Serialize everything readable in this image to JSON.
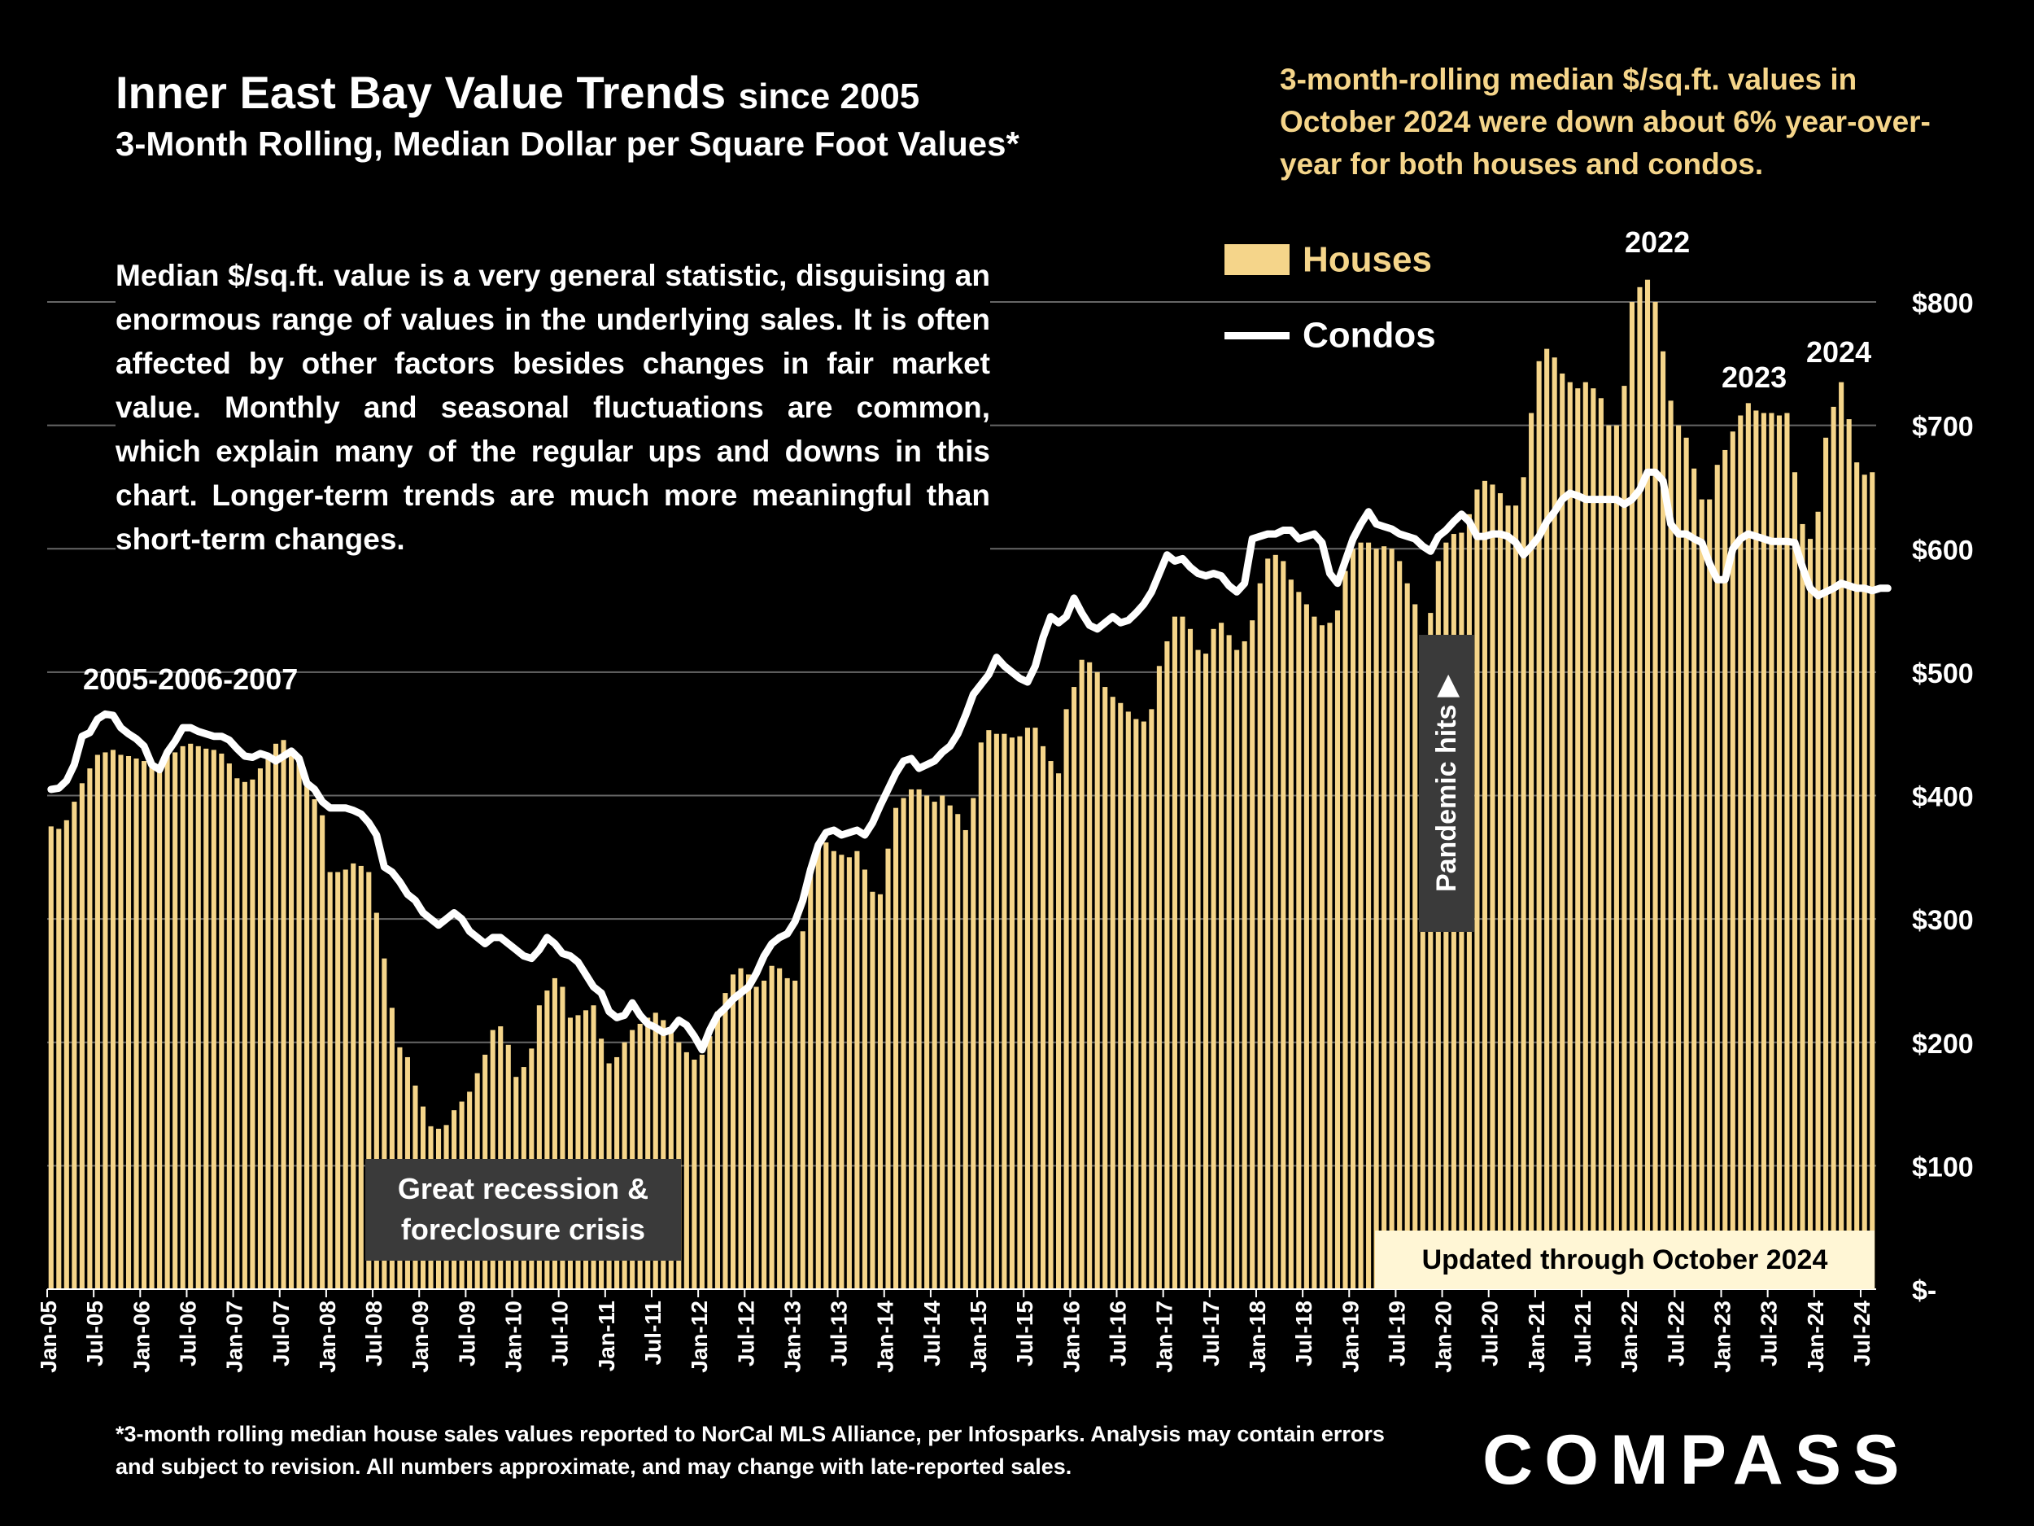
{
  "title": {
    "main": "Inner East Bay Value Trends",
    "suffix": "since 2005",
    "subtitle": "3-Month Rolling, Median Dollar per Square Foot Values*"
  },
  "highlight": "3-month-rolling median $/sq.ft. values in October 2024 were down about 6% year-over-year for both houses and condos.",
  "explainer": "Median $/sq.ft. value is a very general statistic, disguising an enormous range of values in the underlying sales. It is often affected by other factors besides changes in fair market value. Monthly and seasonal fluctuations are common, which explain many of the regular ups and downs in this chart. Longer-term trends are much more meaningful than short-term changes.",
  "footnote": "*3-month rolling median house sales values reported to NorCal MLS Alliance, per Infosparks. Analysis may contain errors and subject to revision. All numbers approximate, and may change with late-reported sales.",
  "logo": "COMPASS",
  "colors": {
    "houses": "#f5d58a",
    "condos": "#ffffff",
    "background": "#000000",
    "gridline": "#666666"
  },
  "annotations": {
    "peak_2005_2007": "2005-2006-2007",
    "peak_2022": "2022",
    "peak_2023": "2023",
    "peak_2024": "2024",
    "recession": "Great recession & foreclosure crisis",
    "pandemic": "Pandemic hits ▶",
    "updated": "Updated through October 2024"
  },
  "chart_data": {
    "type": "bar",
    "xlabel": "",
    "ylabel": "",
    "ylim": [
      0,
      800
    ],
    "y_ticks": [
      "$-",
      "$100",
      "$200",
      "$300",
      "$400",
      "$500",
      "$600",
      "$700",
      "$800"
    ],
    "grid": true,
    "legend": "top-right",
    "x_tick_labels": [
      "Jan-05",
      "Jul-05",
      "Jan-06",
      "Jul-06",
      "Jan-07",
      "Jul-07",
      "Jan-08",
      "Jul-08",
      "Jan-09",
      "Jul-09",
      "Jan-10",
      "Jul-10",
      "Jan-11",
      "Jul-11",
      "Jan-12",
      "Jul-12",
      "Jan-13",
      "Jul-13",
      "Jan-14",
      "Jul-14",
      "Jan-15",
      "Jul-15",
      "Jan-16",
      "Jul-16",
      "Jan-17",
      "Jul-17",
      "Jan-18",
      "Jul-18",
      "Jan-19",
      "Jul-19",
      "Jan-20",
      "Jul-20",
      "Jan-21",
      "Jul-21",
      "Jan-22",
      "Jul-22",
      "Jan-23",
      "Jul-23",
      "Jan-24",
      "Jul-24"
    ],
    "start_month": "Jan-05",
    "series": [
      {
        "name": "Houses",
        "type": "bar",
        "values": [
          375,
          373,
          380,
          395,
          410,
          422,
          433,
          435,
          437,
          433,
          432,
          430,
          428,
          425,
          422,
          432,
          435,
          440,
          442,
          440,
          438,
          437,
          434,
          426,
          414,
          411,
          413,
          422,
          432,
          442,
          445,
          438,
          426,
          410,
          397,
          384,
          338,
          338,
          340,
          345,
          343,
          338,
          305,
          268,
          228,
          196,
          188,
          165,
          148,
          132,
          130,
          133,
          145,
          152,
          160,
          175,
          190,
          210,
          213,
          198,
          172,
          180,
          195,
          230,
          242,
          252,
          245,
          220,
          222,
          226,
          230,
          203,
          183,
          188,
          200,
          210,
          215,
          220,
          224,
          218,
          210,
          200,
          192,
          186,
          190,
          205,
          225,
          240,
          255,
          260,
          255,
          245,
          250,
          262,
          260,
          252,
          250,
          290,
          340,
          362,
          362,
          355,
          352,
          350,
          355,
          340,
          322,
          320,
          357,
          390,
          398,
          405,
          405,
          400,
          395,
          400,
          392,
          385,
          372,
          398,
          443,
          453,
          450,
          450,
          447,
          448,
          455,
          455,
          440,
          428,
          418,
          470,
          488,
          510,
          508,
          500,
          488,
          480,
          475,
          468,
          462,
          460,
          470,
          505,
          525,
          545,
          545,
          535,
          518,
          515,
          535,
          540,
          530,
          518,
          525,
          542,
          572,
          592,
          595,
          590,
          575,
          565,
          555,
          545,
          538,
          540,
          550,
          582,
          600,
          605,
          605,
          600,
          602,
          600,
          590,
          572,
          555,
          530,
          548,
          590,
          605,
          612,
          613,
          628,
          648,
          655,
          652,
          645,
          635,
          635,
          658,
          710,
          752,
          762,
          755,
          742,
          735,
          730,
          735,
          730,
          722,
          700,
          700,
          732,
          800,
          812,
          818,
          800,
          760,
          720,
          700,
          690,
          665,
          640,
          640,
          668,
          680,
          695,
          708,
          718,
          712,
          710,
          710,
          708,
          710,
          662,
          620,
          608,
          630,
          690,
          715,
          735,
          705,
          670,
          660,
          662
        ]
      },
      {
        "name": "Condos",
        "type": "line",
        "values": [
          405,
          406,
          412,
          425,
          448,
          451,
          462,
          466,
          465,
          455,
          450,
          446,
          440,
          425,
          421,
          435,
          444,
          455,
          455,
          452,
          450,
          448,
          448,
          445,
          438,
          432,
          431,
          434,
          432,
          428,
          432,
          436,
          430,
          410,
          405,
          395,
          390,
          390,
          390,
          388,
          385,
          378,
          368,
          342,
          338,
          330,
          320,
          315,
          305,
          300,
          295,
          300,
          305,
          300,
          290,
          285,
          280,
          285,
          285,
          280,
          275,
          270,
          268,
          275,
          285,
          280,
          272,
          270,
          265,
          255,
          245,
          240,
          225,
          220,
          222,
          232,
          222,
          215,
          212,
          208,
          210,
          218,
          214,
          205,
          194,
          210,
          222,
          228,
          235,
          240,
          245,
          256,
          270,
          280,
          285,
          288,
          298,
          315,
          340,
          360,
          370,
          372,
          368,
          370,
          372,
          368,
          378,
          392,
          405,
          418,
          428,
          430,
          422,
          425,
          428,
          435,
          440,
          450,
          465,
          482,
          490,
          498,
          512,
          505,
          500,
          495,
          492,
          505,
          528,
          545,
          540,
          545,
          560,
          548,
          538,
          535,
          540,
          545,
          540,
          542,
          548,
          555,
          565,
          580,
          595,
          590,
          592,
          585,
          580,
          578,
          580,
          578,
          570,
          565,
          572,
          608,
          610,
          612,
          612,
          615,
          615,
          608,
          610,
          612,
          605,
          580,
          572,
          590,
          608,
          620,
          630,
          620,
          618,
          616,
          612,
          610,
          608,
          602,
          598,
          610,
          615,
          622,
          628,
          622,
          610,
          610,
          612,
          612,
          610,
          605,
          595,
          602,
          610,
          622,
          630,
          640,
          645,
          643,
          640,
          640,
          640,
          640,
          640,
          636,
          640,
          648,
          662,
          662,
          655,
          620,
          612,
          612,
          608,
          605,
          588,
          575,
          575,
          600,
          608,
          612,
          610,
          608,
          606,
          606,
          606,
          605,
          585,
          568,
          562,
          565,
          568,
          572,
          570,
          568,
          568,
          566,
          568,
          568
        ]
      }
    ]
  }
}
